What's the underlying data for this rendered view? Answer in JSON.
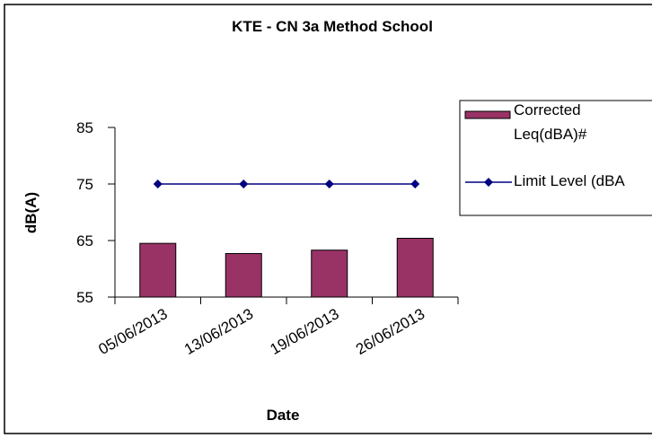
{
  "chart_data": {
    "type": "bar",
    "title": "KTE - CN 3a Method School",
    "x_label": "Date",
    "y_label": "dB(A)",
    "categories": [
      "05/06/2013",
      "13/06/2013",
      "19/06/2013",
      "26/06/2013"
    ],
    "series": [
      {
        "name": "Corrected Leq(dBA)#",
        "type": "bar",
        "color": "#993366",
        "values": [
          64.5,
          62.7,
          63.3,
          65.4
        ]
      },
      {
        "name": "Limit Level (dBA",
        "type": "line",
        "color": "#000080",
        "values": [
          75,
          75,
          75,
          75
        ]
      }
    ],
    "ylim": [
      55,
      85
    ],
    "yticks": [
      55,
      65,
      75,
      85
    ],
    "grid": false,
    "legend": "right"
  }
}
